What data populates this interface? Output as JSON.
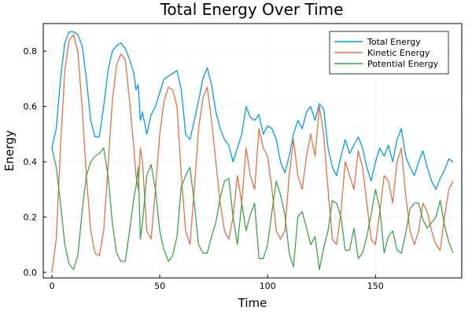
{
  "chart_data": {
    "type": "line",
    "title": "Total Energy Over Time",
    "xlabel": "Time",
    "ylabel": "Energy",
    "xlim": [
      -4,
      190
    ],
    "ylim": [
      -0.02,
      0.9
    ],
    "xticks": [
      0,
      50,
      100,
      150
    ],
    "xtick_labels": [
      "0",
      "50",
      "100",
      "150"
    ],
    "yticks": [
      0.0,
      0.2,
      0.4,
      0.6,
      0.8
    ],
    "ytick_labels": [
      "0.0",
      "0.2",
      "0.4",
      "0.6",
      "0.8"
    ],
    "grid": true,
    "legend_position": "top-right",
    "series": [
      {
        "name": "Total Energy",
        "color": "#009af9",
        "x": [
          0,
          2,
          4,
          6,
          8,
          10,
          12,
          14,
          16,
          18,
          20,
          22,
          24,
          26,
          28,
          30,
          32,
          34,
          36,
          38,
          39,
          40,
          41,
          42,
          44,
          46,
          48,
          50,
          52,
          54,
          56,
          58,
          60,
          62,
          64,
          66,
          68,
          70,
          72,
          74,
          76,
          78,
          80,
          82,
          84,
          86,
          88,
          90,
          92,
          94,
          96,
          98,
          100,
          102,
          104,
          106,
          108,
          110,
          112,
          114,
          116,
          118,
          120,
          122,
          124,
          126,
          128,
          130,
          132,
          134,
          136,
          138,
          140,
          142,
          144,
          146,
          148,
          150,
          152,
          154,
          156,
          158,
          160,
          162,
          164,
          166,
          168,
          170,
          172,
          174,
          176,
          178,
          180,
          182,
          184,
          186
        ],
        "values": [
          0.45,
          0.52,
          0.7,
          0.83,
          0.87,
          0.87,
          0.86,
          0.82,
          0.7,
          0.55,
          0.49,
          0.49,
          0.6,
          0.73,
          0.8,
          0.82,
          0.83,
          0.81,
          0.77,
          0.72,
          0.66,
          0.68,
          0.55,
          0.58,
          0.5,
          0.57,
          0.6,
          0.65,
          0.7,
          0.71,
          0.72,
          0.73,
          0.66,
          0.5,
          0.48,
          0.55,
          0.62,
          0.7,
          0.74,
          0.68,
          0.58,
          0.52,
          0.48,
          0.46,
          0.4,
          0.45,
          0.5,
          0.6,
          0.56,
          0.55,
          0.57,
          0.5,
          0.53,
          0.52,
          0.48,
          0.4,
          0.36,
          0.42,
          0.5,
          0.55,
          0.52,
          0.58,
          0.6,
          0.55,
          0.61,
          0.59,
          0.45,
          0.38,
          0.35,
          0.42,
          0.48,
          0.43,
          0.46,
          0.49,
          0.45,
          0.38,
          0.33,
          0.4,
          0.45,
          0.42,
          0.46,
          0.4,
          0.48,
          0.52,
          0.42,
          0.38,
          0.35,
          0.4,
          0.44,
          0.38,
          0.33,
          0.3,
          0.34,
          0.37,
          0.41,
          0.4
        ]
      },
      {
        "name": "Kinetic Energy",
        "color": "#e26f46",
        "x": [
          0,
          2,
          4,
          6,
          8,
          10,
          12,
          14,
          16,
          18,
          20,
          22,
          24,
          26,
          28,
          30,
          32,
          34,
          36,
          38,
          39,
          40,
          41,
          42,
          44,
          46,
          48,
          50,
          52,
          54,
          56,
          58,
          60,
          62,
          64,
          66,
          68,
          70,
          72,
          74,
          76,
          78,
          80,
          82,
          84,
          86,
          88,
          90,
          92,
          94,
          96,
          98,
          100,
          102,
          104,
          106,
          108,
          110,
          112,
          114,
          116,
          118,
          120,
          122,
          124,
          126,
          128,
          130,
          132,
          134,
          136,
          138,
          140,
          142,
          144,
          146,
          148,
          150,
          152,
          154,
          156,
          158,
          160,
          162,
          164,
          166,
          168,
          170,
          172,
          174,
          176,
          178,
          180,
          182,
          184,
          186
        ],
        "values": [
          0.0,
          0.12,
          0.45,
          0.73,
          0.84,
          0.86,
          0.8,
          0.6,
          0.35,
          0.15,
          0.07,
          0.06,
          0.15,
          0.38,
          0.62,
          0.75,
          0.79,
          0.77,
          0.62,
          0.45,
          0.35,
          0.3,
          0.45,
          0.4,
          0.15,
          0.12,
          0.3,
          0.5,
          0.62,
          0.67,
          0.66,
          0.6,
          0.35,
          0.15,
          0.1,
          0.3,
          0.52,
          0.63,
          0.67,
          0.55,
          0.4,
          0.25,
          0.15,
          0.12,
          0.2,
          0.35,
          0.25,
          0.45,
          0.35,
          0.3,
          0.52,
          0.45,
          0.42,
          0.3,
          0.15,
          0.12,
          0.15,
          0.35,
          0.48,
          0.35,
          0.3,
          0.42,
          0.5,
          0.42,
          0.6,
          0.5,
          0.3,
          0.12,
          0.1,
          0.22,
          0.4,
          0.35,
          0.3,
          0.44,
          0.38,
          0.25,
          0.12,
          0.1,
          0.22,
          0.35,
          0.33,
          0.25,
          0.4,
          0.45,
          0.28,
          0.15,
          0.1,
          0.15,
          0.25,
          0.22,
          0.15,
          0.1,
          0.08,
          0.2,
          0.3,
          0.33
        ]
      },
      {
        "name": "Potential Energy",
        "color": "#3da44d",
        "x": [
          0,
          2,
          4,
          6,
          8,
          10,
          12,
          14,
          16,
          18,
          20,
          22,
          24,
          26,
          28,
          30,
          32,
          34,
          36,
          38,
          39,
          40,
          41,
          42,
          44,
          46,
          48,
          50,
          52,
          54,
          56,
          58,
          60,
          62,
          64,
          66,
          68,
          70,
          72,
          74,
          76,
          78,
          80,
          82,
          84,
          86,
          88,
          90,
          92,
          94,
          96,
          98,
          100,
          102,
          104,
          106,
          108,
          110,
          112,
          114,
          116,
          118,
          120,
          122,
          124,
          126,
          128,
          130,
          132,
          134,
          136,
          138,
          140,
          142,
          144,
          146,
          148,
          150,
          152,
          154,
          156,
          158,
          160,
          162,
          164,
          166,
          168,
          170,
          172,
          174,
          176,
          178,
          180,
          182,
          184,
          186
        ],
        "values": [
          0.45,
          0.38,
          0.25,
          0.1,
          0.03,
          0.01,
          0.06,
          0.22,
          0.35,
          0.4,
          0.42,
          0.43,
          0.45,
          0.35,
          0.18,
          0.07,
          0.04,
          0.04,
          0.15,
          0.27,
          0.31,
          0.38,
          0.12,
          0.18,
          0.35,
          0.39,
          0.3,
          0.15,
          0.08,
          0.04,
          0.06,
          0.13,
          0.31,
          0.35,
          0.38,
          0.25,
          0.1,
          0.07,
          0.07,
          0.13,
          0.18,
          0.27,
          0.33,
          0.34,
          0.2,
          0.1,
          0.25,
          0.15,
          0.21,
          0.25,
          0.05,
          0.05,
          0.1,
          0.22,
          0.33,
          0.28,
          0.21,
          0.07,
          0.02,
          0.2,
          0.22,
          0.16,
          0.1,
          0.13,
          0.01,
          0.09,
          0.15,
          0.26,
          0.25,
          0.2,
          0.08,
          0.08,
          0.16,
          0.05,
          0.07,
          0.13,
          0.21,
          0.3,
          0.23,
          0.07,
          0.13,
          0.15,
          0.08,
          0.07,
          0.14,
          0.23,
          0.25,
          0.25,
          0.19,
          0.16,
          0.18,
          0.2,
          0.26,
          0.17,
          0.11,
          0.07
        ]
      }
    ]
  }
}
